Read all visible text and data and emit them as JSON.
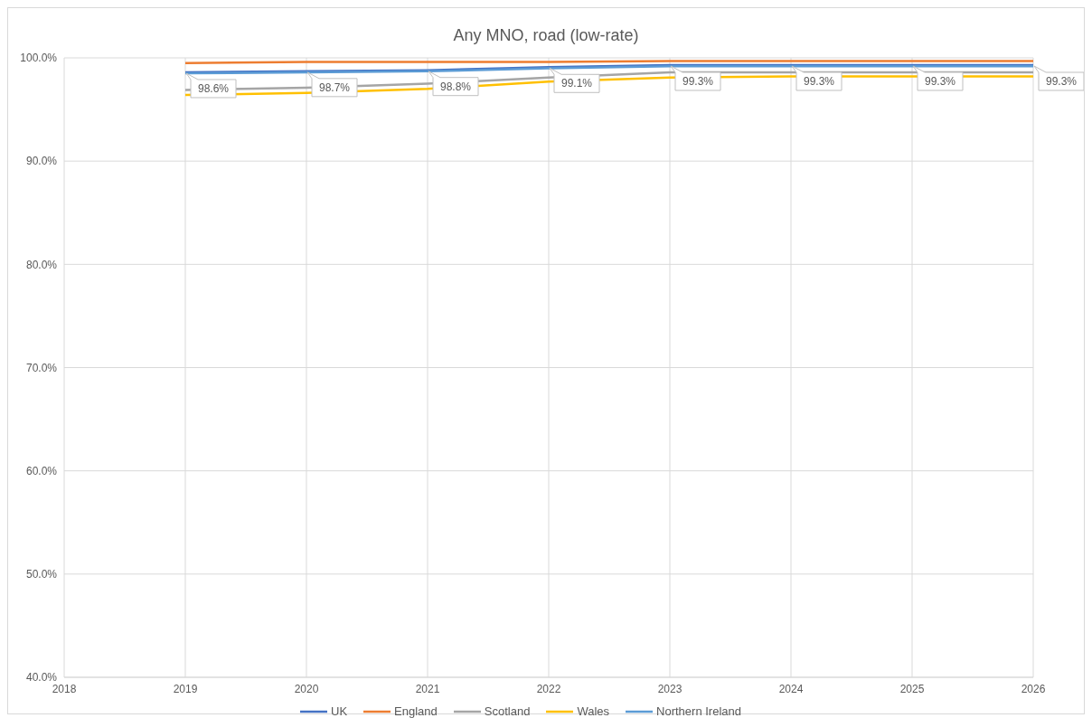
{
  "chart_data": {
    "type": "line",
    "title": "Any MNO, road (low-rate)",
    "x": [
      2019,
      2020,
      2021,
      2022,
      2023,
      2024,
      2025,
      2026
    ],
    "xlim": [
      2018,
      2026
    ],
    "xticks": [
      2018,
      2019,
      2020,
      2021,
      2022,
      2023,
      2024,
      2025,
      2026
    ],
    "ylim": [
      40,
      100
    ],
    "yticks": [
      {
        "value": 40,
        "label": "40.0%"
      },
      {
        "value": 50,
        "label": "50.0%"
      },
      {
        "value": 60,
        "label": "60.0%"
      },
      {
        "value": 70,
        "label": "70.0%"
      },
      {
        "value": 80,
        "label": "80.0%"
      },
      {
        "value": 90,
        "label": "90.0%"
      },
      {
        "value": 100,
        "label": "100.0%"
      }
    ],
    "grid": true,
    "legend": "bottom",
    "marker": "none",
    "series": [
      {
        "name": "UK",
        "color": "#4472c4",
        "values": [
          98.6,
          98.7,
          98.8,
          99.1,
          99.3,
          99.3,
          99.3,
          99.3
        ],
        "value_labels": [
          "98.6%",
          "98.7%",
          "98.8%",
          "99.1%",
          "99.3%",
          "99.3%",
          "99.3%",
          "99.3%"
        ]
      },
      {
        "name": "England",
        "color": "#ed7d31",
        "values": [
          99.5,
          99.6,
          99.6,
          99.6,
          99.7,
          99.7,
          99.7,
          99.7
        ]
      },
      {
        "name": "Scotland",
        "color": "#a5a5a5",
        "values": [
          96.9,
          97.1,
          97.5,
          98.1,
          98.6,
          98.6,
          98.6,
          98.6
        ]
      },
      {
        "name": "Wales",
        "color": "#ffc000",
        "values": [
          96.4,
          96.6,
          97.0,
          97.7,
          98.1,
          98.2,
          98.2,
          98.2
        ]
      },
      {
        "name": "Northern Ireland",
        "color": "#5b9bd5",
        "values": [
          98.5,
          98.6,
          98.7,
          99.0,
          99.2,
          99.2,
          99.2,
          99.2
        ]
      }
    ]
  }
}
